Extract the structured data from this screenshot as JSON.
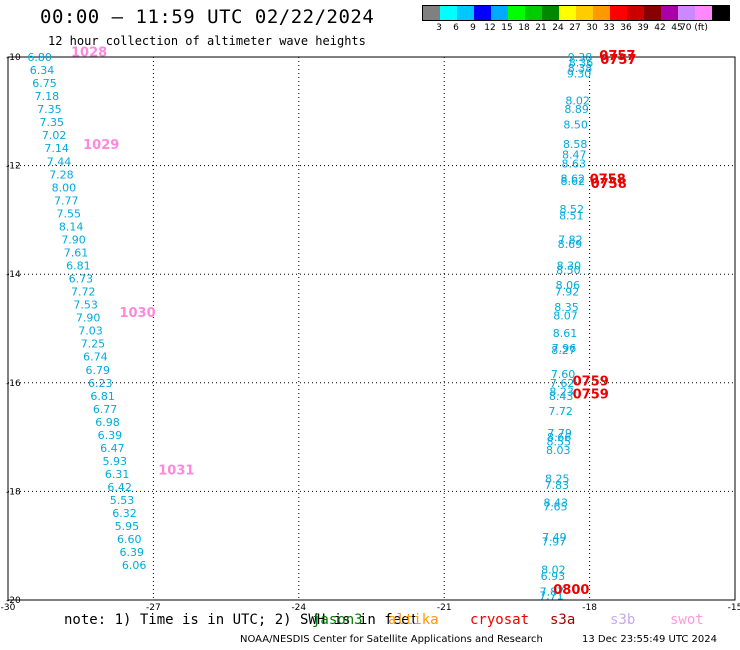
{
  "header": {
    "title": "00:00 — 11:59 UTC 02/22/2024",
    "subtitle": "12 hour collection of altimeter wave heights"
  },
  "legend": {
    "colors": [
      "#808080",
      "#00ffff",
      "#00c8ff",
      "#0000ff",
      "#00aaff",
      "#00ff00",
      "#00cc00",
      "#008800",
      "#ffff00",
      "#ffcc00",
      "#ff9900",
      "#ff0000",
      "#cc0000",
      "#880000",
      "#aa00aa",
      "#cc88ff",
      "#ff88ff",
      "#000000"
    ],
    "labels": [
      "3",
      "6",
      "9",
      "12",
      "15",
      "18",
      "21",
      "24",
      "27",
      "30",
      "33",
      "36",
      "39",
      "42",
      "45",
      "70 (ft)"
    ]
  },
  "chart_data": {
    "type": "scatter",
    "xlim": [
      -30,
      -15
    ],
    "ylim": [
      -20,
      -10
    ],
    "xticks": [
      -30,
      -27,
      -24,
      -21,
      -18,
      -15
    ],
    "yticks": [
      -10,
      -12,
      -14,
      -16,
      -18,
      -20
    ],
    "grid": true,
    "swh_color": "#00aadd",
    "time_color_a": "#ff88dd",
    "time_color_b": "#ee0000",
    "series": [
      {
        "name": "jason3",
        "swh": [
          {
            "x": -29.6,
            "y": -10.0,
            "v": "6.80"
          },
          {
            "x": -29.55,
            "y": -10.24,
            "v": "6.34"
          },
          {
            "x": -29.5,
            "y": -10.48,
            "v": "6.75"
          },
          {
            "x": -29.45,
            "y": -10.72,
            "v": "7.18"
          },
          {
            "x": -29.4,
            "y": -10.96,
            "v": "7.35"
          },
          {
            "x": -29.35,
            "y": -11.2,
            "v": "7.35"
          },
          {
            "x": -29.3,
            "y": -11.44,
            "v": "7.02"
          },
          {
            "x": -29.25,
            "y": -11.68,
            "v": "7.14"
          },
          {
            "x": -29.2,
            "y": -11.92,
            "v": "7.44"
          },
          {
            "x": -29.15,
            "y": -12.16,
            "v": "7.28"
          },
          {
            "x": -29.1,
            "y": -12.4,
            "v": "8.00"
          },
          {
            "x": -29.05,
            "y": -12.64,
            "v": "7.77"
          },
          {
            "x": -29.0,
            "y": -12.88,
            "v": "7.55"
          },
          {
            "x": -28.95,
            "y": -13.12,
            "v": "8.14"
          },
          {
            "x": -28.9,
            "y": -13.36,
            "v": "7.90"
          },
          {
            "x": -28.85,
            "y": -13.6,
            "v": "7.61"
          },
          {
            "x": -28.8,
            "y": -13.84,
            "v": "6.81"
          },
          {
            "x": -28.75,
            "y": -14.08,
            "v": "6.73"
          },
          {
            "x": -28.7,
            "y": -14.32,
            "v": "7.72"
          },
          {
            "x": -28.65,
            "y": -14.56,
            "v": "7.53"
          },
          {
            "x": -28.6,
            "y": -14.8,
            "v": "7.90"
          },
          {
            "x": -28.55,
            "y": -15.04,
            "v": "7.03"
          },
          {
            "x": -28.5,
            "y": -15.28,
            "v": "7.25"
          },
          {
            "x": -28.45,
            "y": -15.52,
            "v": "6.74"
          },
          {
            "x": -28.4,
            "y": -15.76,
            "v": "6.79"
          },
          {
            "x": -28.35,
            "y": -16.0,
            "v": "6.23"
          },
          {
            "x": -28.3,
            "y": -16.24,
            "v": "6.81"
          },
          {
            "x": -28.25,
            "y": -16.48,
            "v": "6.77"
          },
          {
            "x": -28.2,
            "y": -16.72,
            "v": "6.98"
          },
          {
            "x": -28.15,
            "y": -16.96,
            "v": "6.39"
          },
          {
            "x": -28.1,
            "y": -17.2,
            "v": "6.47"
          },
          {
            "x": -28.05,
            "y": -17.44,
            "v": "5.93"
          },
          {
            "x": -28.0,
            "y": -17.68,
            "v": "6.31"
          },
          {
            "x": -27.95,
            "y": -17.92,
            "v": "6.42"
          },
          {
            "x": -27.9,
            "y": -18.16,
            "v": "5.53"
          },
          {
            "x": -27.85,
            "y": -18.4,
            "v": "6.32"
          },
          {
            "x": -27.8,
            "y": -18.64,
            "v": "5.95"
          },
          {
            "x": -27.75,
            "y": -18.88,
            "v": "6.60"
          },
          {
            "x": -27.7,
            "y": -19.12,
            "v": "6.39"
          },
          {
            "x": -27.65,
            "y": -19.36,
            "v": "6.06"
          }
        ],
        "times": [
          {
            "x": -28.7,
            "y": -9.9,
            "v": "1028"
          },
          {
            "x": -28.45,
            "y": -11.6,
            "v": "1029"
          },
          {
            "x": -27.7,
            "y": -14.7,
            "v": "1030"
          },
          {
            "x": -26.9,
            "y": -17.6,
            "v": "1031"
          }
        ]
      },
      {
        "name": "cryosat",
        "swh": [
          {
            "x": -18.45,
            "y": -10.0,
            "v": "9.38"
          },
          {
            "x": -18.43,
            "y": -10.1,
            "v": "8.36"
          },
          {
            "x": -18.45,
            "y": -10.2,
            "v": "8.38"
          },
          {
            "x": -18.47,
            "y": -10.3,
            "v": "9.30"
          },
          {
            "x": -18.5,
            "y": -10.8,
            "v": "8.02"
          },
          {
            "x": -18.52,
            "y": -10.96,
            "v": "8.89"
          },
          {
            "x": -18.54,
            "y": -11.24,
            "v": "8.50"
          },
          {
            "x": -18.55,
            "y": -11.6,
            "v": "8.58"
          },
          {
            "x": -18.57,
            "y": -11.8,
            "v": "8.47"
          },
          {
            "x": -18.58,
            "y": -11.96,
            "v": "8.63"
          },
          {
            "x": -18.6,
            "y": -12.24,
            "v": "8.62"
          },
          {
            "x": -18.6,
            "y": -12.28,
            "v": "8.62"
          },
          {
            "x": -18.62,
            "y": -12.8,
            "v": "8.52"
          },
          {
            "x": -18.63,
            "y": -12.92,
            "v": "8.51"
          },
          {
            "x": -18.65,
            "y": -13.36,
            "v": "7.82"
          },
          {
            "x": -18.66,
            "y": -13.44,
            "v": "8.69"
          },
          {
            "x": -18.68,
            "y": -13.84,
            "v": "8.30"
          },
          {
            "x": -18.69,
            "y": -13.92,
            "v": "8.50"
          },
          {
            "x": -18.7,
            "y": -14.2,
            "v": "8.06"
          },
          {
            "x": -18.72,
            "y": -14.32,
            "v": "7.92"
          },
          {
            "x": -18.73,
            "y": -14.6,
            "v": "8.35"
          },
          {
            "x": -18.75,
            "y": -14.76,
            "v": "8.07"
          },
          {
            "x": -18.76,
            "y": -15.08,
            "v": "8.61"
          },
          {
            "x": -18.78,
            "y": -15.36,
            "v": "7.96"
          },
          {
            "x": -18.79,
            "y": -15.4,
            "v": "8.27"
          },
          {
            "x": -18.8,
            "y": -15.84,
            "v": "7.60"
          },
          {
            "x": -18.82,
            "y": -16.0,
            "v": "7.62"
          },
          {
            "x": -18.83,
            "y": -16.16,
            "v": "8.23"
          },
          {
            "x": -18.84,
            "y": -16.24,
            "v": "8.43"
          },
          {
            "x": -18.85,
            "y": -16.52,
            "v": "7.72"
          },
          {
            "x": -18.87,
            "y": -16.92,
            "v": "7.79"
          },
          {
            "x": -18.88,
            "y": -17.0,
            "v": "8.66"
          },
          {
            "x": -18.89,
            "y": -17.08,
            "v": "8.55"
          },
          {
            "x": -18.9,
            "y": -17.24,
            "v": "8.03"
          },
          {
            "x": -18.92,
            "y": -17.76,
            "v": "8.25"
          },
          {
            "x": -18.93,
            "y": -17.88,
            "v": "7.83"
          },
          {
            "x": -18.95,
            "y": -18.2,
            "v": "8.43"
          },
          {
            "x": -18.96,
            "y": -18.28,
            "v": "7.65"
          },
          {
            "x": -18.98,
            "y": -18.84,
            "v": "7.49"
          },
          {
            "x": -18.99,
            "y": -18.92,
            "v": "7.97"
          },
          {
            "x": -19.0,
            "y": -19.44,
            "v": "8.02"
          },
          {
            "x": -19.01,
            "y": -19.56,
            "v": "6.93"
          },
          {
            "x": -19.03,
            "y": -19.84,
            "v": "7.87"
          },
          {
            "x": -19.04,
            "y": -19.92,
            "v": "7.71"
          }
        ],
        "times": [
          {
            "x": -17.8,
            "y": -9.96,
            "v": "0757"
          },
          {
            "x": -17.78,
            "y": -10.04,
            "v": "0757"
          },
          {
            "x": -18.0,
            "y": -12.24,
            "v": "0758"
          },
          {
            "x": -17.98,
            "y": -12.32,
            "v": "0758"
          },
          {
            "x": -18.35,
            "y": -15.96,
            "v": "0759"
          },
          {
            "x": -18.35,
            "y": -16.2,
            "v": "0759"
          },
          {
            "x": -18.75,
            "y": -19.8,
            "v": "0800"
          }
        ]
      }
    ]
  },
  "note": {
    "text": "note: 1) Time is in UTC; 2) SWH is in feet"
  },
  "satellites": [
    {
      "label": "jason3",
      "color": "#007700"
    },
    {
      "label": "altika",
      "color": "#ff9900"
    },
    {
      "label": "cryosat",
      "color": "#ee0000"
    },
    {
      "label": "s3a",
      "color": "#aa0000"
    },
    {
      "label": "s3b",
      "color": "#c8a8ee"
    },
    {
      "label": "swot",
      "color": "#ff99dd"
    }
  ],
  "footer": {
    "credit": "NOAA/NESDIS Center for Satellite Applications and Research",
    "timestamp": "13 Dec 23:55:49 UTC 2024"
  }
}
